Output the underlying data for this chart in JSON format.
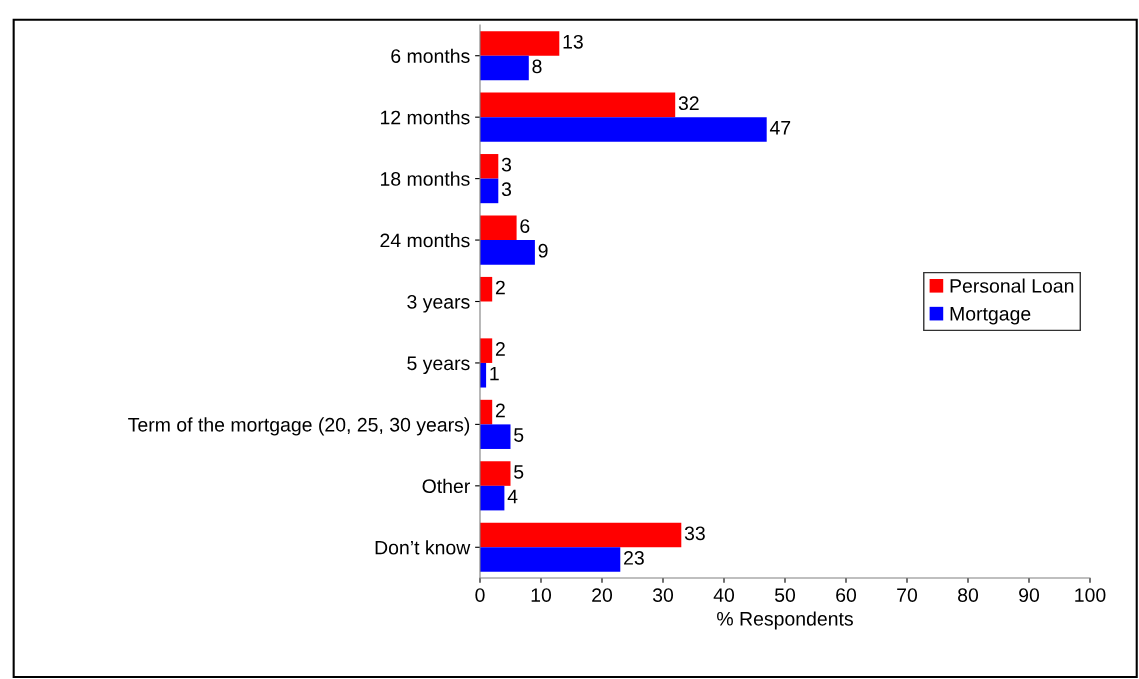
{
  "chart_data": {
    "type": "bar",
    "orientation": "horizontal",
    "xlabel": "% Respondents",
    "categories": [
      "6 months",
      "12 months",
      "18 months",
      "24 months",
      "3 years",
      "5 years",
      "Term of the mortgage (20, 25, 30 years)",
      "Other",
      "Don’t know"
    ],
    "series": [
      {
        "name": "Personal Loan",
        "color": "#ff0000",
        "values": [
          13,
          32,
          3,
          6,
          2,
          2,
          2,
          5,
          33
        ]
      },
      {
        "name": "Mortgage",
        "color": "#0000ff",
        "values": [
          8,
          47,
          3,
          9,
          null,
          1,
          5,
          4,
          23
        ]
      }
    ],
    "xlim": [
      0,
      100
    ],
    "xticks": [
      0,
      10,
      20,
      30,
      40,
      50,
      60,
      70,
      80,
      90,
      100
    ],
    "data_labels": true,
    "legend": "right",
    "grid": false
  }
}
